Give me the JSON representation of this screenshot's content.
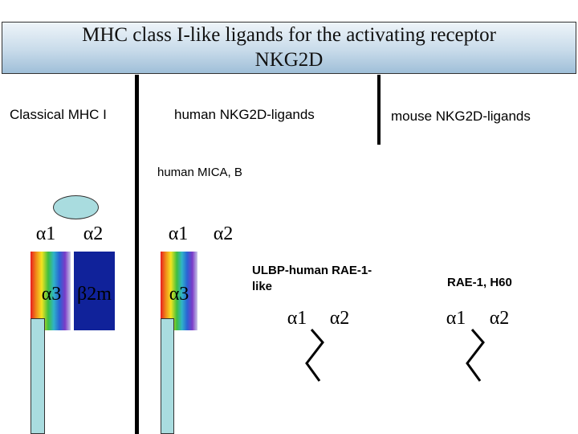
{
  "title": {
    "line1": "MHC class I-like ligands for the activating receptor",
    "line2": "NKG2D"
  },
  "columns": {
    "classical": "Classical MHC I",
    "human": "human NKG2D-ligands",
    "mouse": "mouse NKG2D-ligands"
  },
  "subheadings": {
    "mica": "human MICA, B",
    "ulbp_line1": "ULBP-human RAE-1-",
    "ulbp_line2": "like",
    "rae_h60": "RAE-1, H60"
  },
  "domains": {
    "alpha1": "α1",
    "alpha2": "α2",
    "alpha3": "α3",
    "beta2m": "β2m"
  },
  "colors": {
    "title_gradient_top": "#eef4f9",
    "title_gradient_bottom": "#9fbfd8",
    "domain_navy": "#10229a",
    "stem_cyan": "#a9dcdf"
  }
}
